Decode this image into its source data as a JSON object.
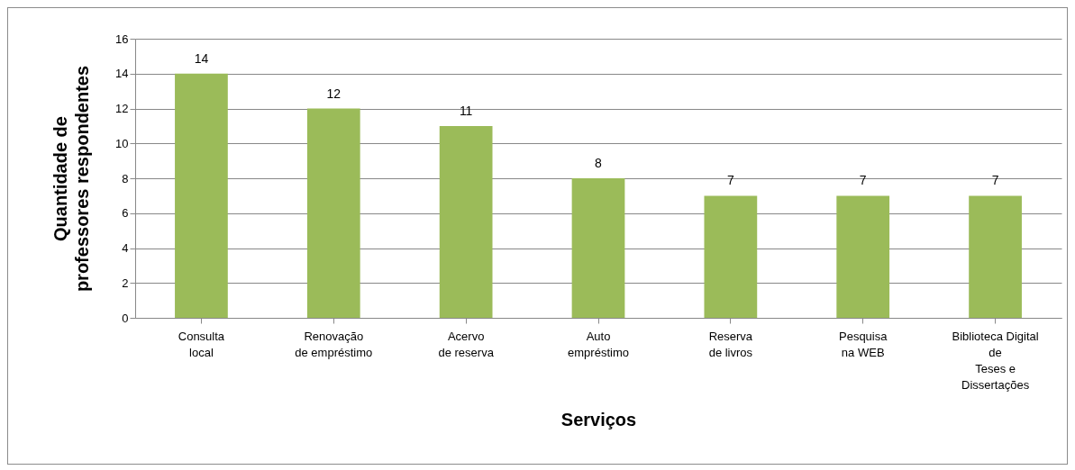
{
  "chart_data": {
    "type": "bar",
    "xlabel": "Serviços",
    "ylabel": "Quantidade de\nprofessores respondentes",
    "categories": [
      "Consulta\nlocal",
      "Renovação\nde empréstimo",
      "Acervo\nde reserva",
      "Auto\nempréstimo",
      "Reserva\nde livros",
      "Pesquisa\nna WEB",
      "Biblioteca Digital\nde\nTeses e\nDissertações"
    ],
    "values": [
      14,
      12,
      11,
      8,
      7,
      7,
      7
    ],
    "color": "#9bbb59",
    "ylim": [
      0,
      16
    ],
    "yticks": [
      0,
      2,
      4,
      6,
      8,
      10,
      12,
      14,
      16
    ],
    "grid": "y",
    "data_labels": true
  }
}
